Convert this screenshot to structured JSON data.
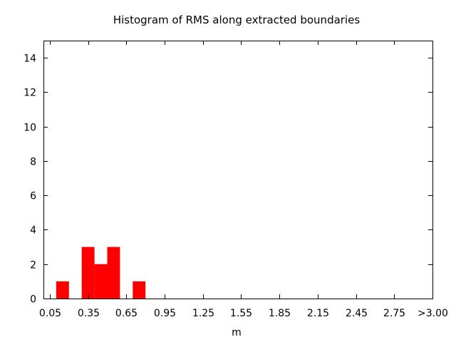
{
  "chart_data": {
    "type": "bar",
    "title": "Histogram of RMS along extracted boundaries",
    "xlabel": "m",
    "ylabel": "",
    "x_ticks": [
      "0.05",
      "0.35",
      "0.65",
      "0.95",
      "1.25",
      "1.55",
      "1.85",
      "2.15",
      "2.45",
      "2.75",
      ">3.00"
    ],
    "y_ticks": [
      0,
      2,
      4,
      6,
      8,
      10,
      12,
      14
    ],
    "xlim": [
      0.0,
      3.05
    ],
    "ylim": [
      0,
      15
    ],
    "bin_width": 0.1,
    "bins": [
      {
        "center": 0.15,
        "count": 1
      },
      {
        "center": 0.35,
        "count": 3
      },
      {
        "center": 0.45,
        "count": 2
      },
      {
        "center": 0.55,
        "count": 3
      },
      {
        "center": 0.75,
        "count": 1
      }
    ],
    "grid": false,
    "bar_color": "#ff0000"
  }
}
